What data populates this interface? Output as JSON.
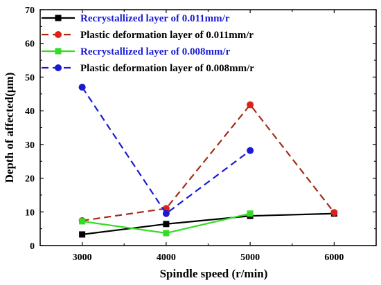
{
  "chart_data": {
    "type": "line",
    "x": [
      3000,
      4000,
      5000,
      6000
    ],
    "xlim": [
      2500,
      6500
    ],
    "ylim": [
      0,
      70
    ],
    "xticks": [
      3000,
      4000,
      5000,
      6000
    ],
    "yticks": [
      0,
      10,
      20,
      30,
      40,
      50,
      60,
      70
    ],
    "xlabel": "Spindle speed (r/min)",
    "ylabel": "Depth of affected(μm)",
    "grid": false,
    "legend_position": "top-left",
    "series": [
      {
        "name": "Recrystallized layer of 0.011mm/r",
        "values": [
          3.3,
          6.4,
          8.8,
          9.5
        ],
        "color": "#000000",
        "marker": "square",
        "dash": "solid",
        "label_color": "#1a1ad4"
      },
      {
        "name": "Plastic deformation layer of 0.011mm/r",
        "values": [
          7.4,
          11.0,
          41.8,
          9.8
        ],
        "color": "#a52a14",
        "marker": "circle",
        "dash": "dashed",
        "marker_color": "#e0201a",
        "label_color": "#000000"
      },
      {
        "name": "Recrystallized layer of 0.008mm/r",
        "values": [
          7.2,
          3.7,
          9.5,
          null
        ],
        "color": "#33dd22",
        "marker": "square",
        "dash": "solid",
        "label_color": "#1a1ad4"
      },
      {
        "name": "Plastic deformation layer of 0.008mm/r",
        "values": [
          47.0,
          9.5,
          28.2,
          null
        ],
        "color": "#1a1ad4",
        "marker": "circle",
        "dash": "dashed",
        "label_color": "#000000"
      }
    ]
  }
}
